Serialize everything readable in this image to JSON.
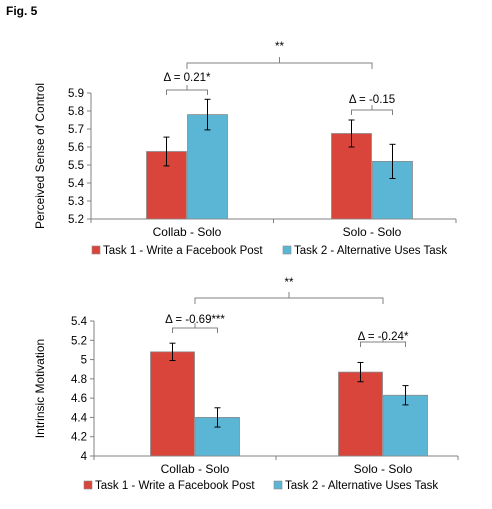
{
  "figure_label": "Fig. 5",
  "colors": {
    "task1": "#d9443b",
    "task2": "#5bb6d6",
    "axis": "#808080",
    "bracket": "#808080",
    "errorbar": "#000000"
  },
  "chart_data": [
    {
      "type": "bar",
      "ylabel": "Perceived Sense of Control",
      "ylim": [
        5.2,
        5.9
      ],
      "yticks": [
        "5.2",
        "5.3",
        "5.4",
        "5.5",
        "5.6",
        "5.7",
        "5.8",
        "5.9"
      ],
      "categories": [
        "Collab - Solo",
        "Solo - Solo"
      ],
      "series": [
        {
          "name": "Task 1 - Write a Facebook Post",
          "values": [
            5.575,
            5.675
          ],
          "errors": [
            0.08,
            0.075
          ]
        },
        {
          "name": "Task 2 - Alternative Uses Task",
          "values": [
            5.78,
            5.52
          ],
          "errors": [
            0.085,
            0.095
          ]
        }
      ],
      "annotations": {
        "group1": "Δ = 0.21*",
        "group2": "Δ = -0.15",
        "between": "**"
      },
      "legend_position": "bottom"
    },
    {
      "type": "bar",
      "ylabel": "Intrinsic Motivation",
      "ylim": [
        4,
        5.4
      ],
      "yticks": [
        "4",
        "4.2",
        "4.4",
        "4.6",
        "4.8",
        "5",
        "5.2",
        "5.4"
      ],
      "categories": [
        "Collab - Solo",
        "Solo - Solo"
      ],
      "series": [
        {
          "name": "Task 1 - Write a Facebook Post",
          "values": [
            5.08,
            4.87
          ],
          "errors": [
            0.09,
            0.1
          ]
        },
        {
          "name": "Task 2 - Alternative Uses Task",
          "values": [
            4.4,
            4.63
          ],
          "errors": [
            0.1,
            0.1
          ]
        }
      ],
      "annotations": {
        "group1": "Δ = -0.69***",
        "group2": "Δ = -0.24*",
        "between": "**"
      },
      "legend_position": "bottom"
    }
  ]
}
